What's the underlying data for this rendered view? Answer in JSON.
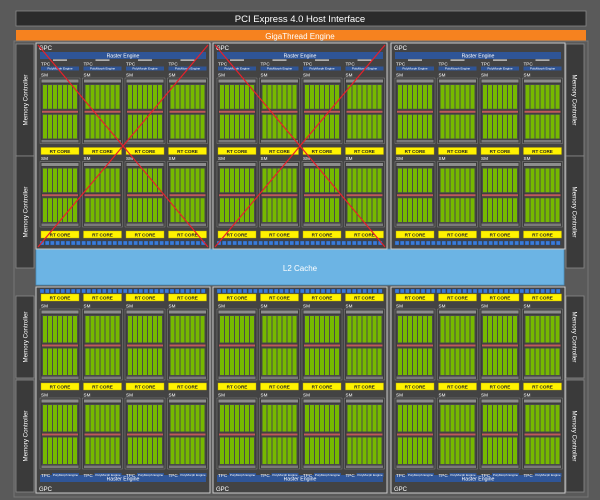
{
  "header": {
    "pci_label": "PCI Express 4.0 Host Interface",
    "gigathread_label": "GigaThread Engine"
  },
  "memory_controller_label": "Memory Controller",
  "l2_cache_label": "L2 Cache",
  "gpc_label": "GPC",
  "raster_engine_label": "Raster Engine",
  "tpc_label": "TPC",
  "sm_label": "SM",
  "rt_core_label": "RT CORE",
  "polymorph_label": "PolyMorph Engine",
  "gpcs": [
    {
      "id": "gpc-1",
      "row": "top",
      "col": 0,
      "disabled": true
    },
    {
      "id": "gpc-2",
      "row": "top",
      "col": 1,
      "disabled": true
    },
    {
      "id": "gpc-3",
      "row": "top",
      "col": 2,
      "disabled": false
    },
    {
      "id": "gpc-4",
      "row": "bottom",
      "col": 0,
      "disabled": false
    },
    {
      "id": "gpc-5",
      "row": "bottom",
      "col": 1,
      "disabled": false
    },
    {
      "id": "gpc-6",
      "row": "bottom",
      "col": 2,
      "disabled": false
    }
  ],
  "colors": {
    "background": "#5a5a5a",
    "gigathread": "#f6821f",
    "l2_cache": "#6cb4e4",
    "raster_engine": "#2f5597",
    "rt_core": "#fff200",
    "cuda_core": "#76b900",
    "disabled_mark": "#e8202a"
  }
}
